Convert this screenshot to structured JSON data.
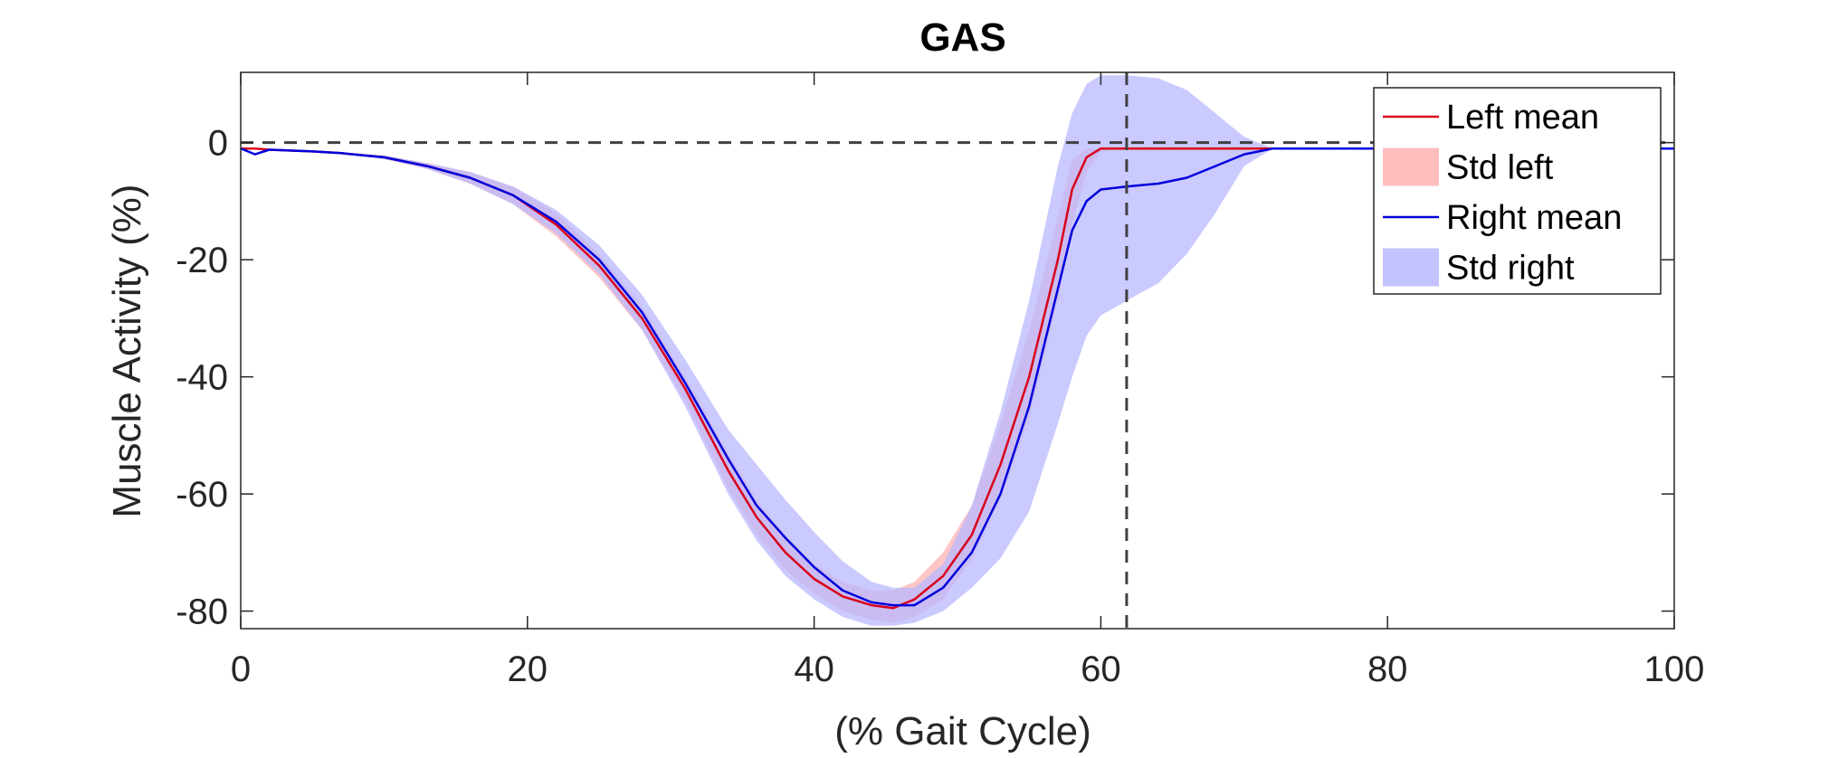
{
  "chart_data": {
    "type": "line",
    "title": "GAS",
    "xlabel": "(% Gait Cycle)",
    "ylabel": "Muscle Activity (%)",
    "xlim": [
      0,
      100
    ],
    "ylim": [
      -83,
      12
    ],
    "xticks": [
      0,
      20,
      40,
      60,
      80,
      100
    ],
    "yticks": [
      0,
      -20,
      -40,
      -60,
      -80
    ],
    "grid": false,
    "legend_position": "top-right",
    "legend": [
      "Left mean",
      "Std left",
      "Right mean",
      "Std right"
    ],
    "reference_lines": {
      "horizontal_y": 0,
      "vertical_x": 61.8
    },
    "colors": {
      "left_mean": "#d9001b",
      "left_std": "#ffb3b3",
      "right_mean": "#0000dd",
      "right_std": "#b8b8ff",
      "reference": "#404040",
      "axis": "#262626"
    },
    "x": [
      0,
      1,
      2,
      3,
      5,
      7,
      10,
      13,
      16,
      19,
      22,
      25,
      28,
      31,
      34,
      36,
      38,
      40,
      42,
      44,
      45.5,
      47,
      49,
      51,
      53,
      55,
      57,
      58,
      59,
      60,
      61.8,
      64,
      66,
      68,
      70,
      72,
      75,
      80,
      85,
      90,
      100
    ],
    "series": [
      {
        "name": "Left mean",
        "values": [
          -1,
          -1,
          -1.2,
          -1.3,
          -1.5,
          -1.8,
          -2.5,
          -4,
          -6,
          -9,
          -14,
          -21,
          -30,
          -42,
          -56,
          -64,
          -70,
          -74.5,
          -77.5,
          -79,
          -79.5,
          -78,
          -74,
          -67,
          -55,
          -40,
          -20,
          -8,
          -2.5,
          -1,
          -1,
          -1,
          -1,
          -1,
          -1,
          -1,
          -1,
          -1,
          -1,
          -1,
          -1
        ]
      },
      {
        "name": "Std left",
        "upper": [
          -1,
          -1,
          -1.2,
          -1.3,
          -1.5,
          -1.7,
          -2.2,
          -3.5,
          -5,
          -7.5,
          -12,
          -19,
          -28,
          -40,
          -53,
          -61,
          -67,
          -72,
          -75,
          -76.5,
          -76.5,
          -75,
          -70,
          -62,
          -48,
          -32,
          -13,
          -3,
          -1,
          -1,
          -1,
          -1,
          -1,
          -1,
          -1,
          -1,
          -1,
          -1,
          -1,
          -1,
          -1
        ],
        "lower": [
          -1,
          -1,
          -1.2,
          -1.3,
          -1.5,
          -1.9,
          -2.8,
          -4.5,
          -7,
          -10.5,
          -16,
          -23,
          -32,
          -44,
          -59,
          -67,
          -73,
          -77,
          -80,
          -81.5,
          -82,
          -81,
          -78,
          -71,
          -61,
          -47,
          -27,
          -14,
          -5,
          -1.5,
          -1,
          -1,
          -1,
          -1,
          -1,
          -1,
          -1,
          -1,
          -1,
          -1,
          -1
        ]
      },
      {
        "name": "Right mean",
        "values": [
          -1,
          -2,
          -1.2,
          -1.3,
          -1.5,
          -1.8,
          -2.5,
          -4,
          -6,
          -9,
          -13.5,
          -20,
          -29,
          -41,
          -54,
          -62,
          -67.5,
          -72.5,
          -76.5,
          -78.5,
          -79,
          -79,
          -76,
          -70,
          -60,
          -45,
          -25,
          -15,
          -10,
          -8,
          -7.5,
          -7,
          -6,
          -4,
          -2,
          -1,
          -1,
          -1,
          -1,
          -1,
          -1
        ]
      },
      {
        "name": "Std right",
        "upper": [
          -1,
          -1.8,
          -1.2,
          -1.3,
          -1.5,
          -1.7,
          -2.2,
          -3.5,
          -5,
          -7.5,
          -11.5,
          -17.5,
          -26,
          -37,
          -49,
          -55,
          -61,
          -66.5,
          -71.5,
          -75,
          -76,
          -76,
          -72,
          -62,
          -46,
          -27,
          -4,
          5,
          10,
          11.5,
          11.5,
          11,
          9,
          5,
          1,
          -1,
          -1,
          -1,
          -1,
          -1,
          -1
        ],
        "lower": [
          -1,
          -2.2,
          -1.2,
          -1.3,
          -1.5,
          -1.9,
          -2.8,
          -4.5,
          -7,
          -10.5,
          -15.5,
          -22.5,
          -32,
          -45,
          -60,
          -68,
          -74,
          -78,
          -81,
          -82.5,
          -82.5,
          -82,
          -80,
          -76,
          -71,
          -63,
          -48,
          -40,
          -33,
          -29.5,
          -27,
          -24,
          -19,
          -12,
          -4,
          -1,
          -1,
          -1,
          -1,
          -1,
          -1
        ]
      }
    ]
  }
}
